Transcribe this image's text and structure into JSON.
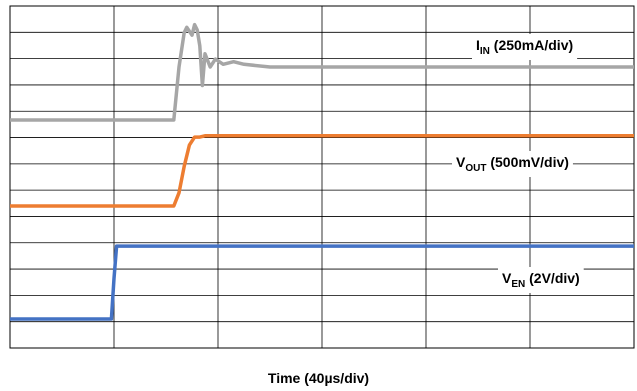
{
  "chart_data": {
    "type": "line",
    "title": "",
    "xlabel": "Time (40µs/div)",
    "ylabel": "",
    "x_units": "µs",
    "xlim": [
      0,
      240
    ],
    "divisions": {
      "x": 6,
      "y": 13
    },
    "grid": true,
    "legend": "inline labels on right",
    "series": [
      {
        "name": "I_IN (250mA/div)",
        "label_main": "I",
        "label_sub": "IN",
        "label_rest": " (250mA/div)",
        "color": "#a6a6a6",
        "x": [
          0,
          63,
          65,
          67,
          68,
          70,
          71,
          72,
          73,
          74,
          75,
          77,
          79,
          82,
          86,
          90,
          100,
          120,
          160,
          240
        ],
        "y": [
          0,
          0,
          2,
          3.3,
          3.5,
          3.2,
          3.6,
          3.4,
          2.8,
          1.3,
          2.5,
          2.0,
          2.3,
          2.1,
          2.2,
          2.1,
          2.0,
          2.0,
          2.0,
          2.0
        ]
      },
      {
        "name": "V_OUT (500mV/div)",
        "label_main": "V",
        "label_sub": "OUT",
        "label_rest": " (500mV/div)",
        "color": "#ed7d31",
        "x": [
          0,
          63,
          65,
          67,
          69,
          71,
          73,
          75,
          240
        ],
        "y": [
          0,
          0,
          0.5,
          1.5,
          2.3,
          2.6,
          2.6,
          2.65,
          2.65
        ]
      },
      {
        "name": "V_EN (2V/div)",
        "label_main": "V",
        "label_sub": "EN",
        "label_rest": " (2V/div)",
        "color": "#4472c4",
        "x": [
          0,
          39,
          40,
          41,
          240
        ],
        "y": [
          0,
          0,
          1.5,
          2.7,
          2.7
        ]
      }
    ]
  }
}
